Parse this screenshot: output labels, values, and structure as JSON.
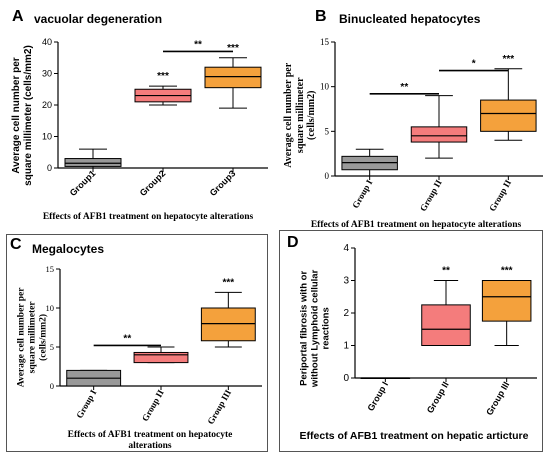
{
  "figure": {
    "panels": [
      {
        "letter": "A",
        "title": "vacuolar degeneration",
        "ylabel_lines": [
          "Average cell number per",
          "square millimeter (cells/mm2)"
        ],
        "xlabel": "Effects of AFB1 treatment on hepatocyte alterations",
        "ytick_labels": [
          "0",
          "10",
          "20",
          "30",
          "40"
        ],
        "category_labels": [
          "Group1",
          "Group2",
          "Group3"
        ],
        "significance": [
          {
            "text": "***"
          },
          {
            "text": "***"
          },
          {
            "text": "**"
          }
        ]
      },
      {
        "letter": "B",
        "title": "Binucleated hepatocytes",
        "ylabel_lines": [
          "Average cell number per",
          "square millimeter",
          "(cells/mm2)"
        ],
        "xlabel": "Effects of AFB1 treatment on hepatocyte alterations",
        "ytick_labels": [
          "0",
          "5",
          "10",
          "15"
        ],
        "category_labels": [
          "Group I",
          "Group II",
          "Group II"
        ],
        "significance": [
          {
            "text": "***"
          },
          {
            "text": "**"
          },
          {
            "text": "*"
          }
        ]
      },
      {
        "letter": "C",
        "title": "Megalocytes",
        "ylabel_lines": [
          "Average cell number per",
          "square millimeter",
          "(cells/mm2)"
        ],
        "xlabel_lines": [
          "Effects of AFB1 treatment on hepatocyte",
          "alterations"
        ],
        "ytick_labels": [
          "0",
          "5",
          "10",
          "15"
        ],
        "category_labels": [
          "Group I",
          "Group II",
          "Group III"
        ],
        "significance": [
          {
            "text": "***"
          },
          {
            "text": "**"
          }
        ]
      },
      {
        "letter": "D",
        "title": "",
        "ylabel_lines": [
          "Periportal fibrosis with or",
          "without Lymphoid cellular",
          "reactions"
        ],
        "xlabel": "Effects of AFB1 treatment on hepatic articture",
        "ytick_labels": [
          "0",
          "1",
          "2",
          "3",
          "4"
        ],
        "category_labels": [
          "Group I",
          "Group II",
          "Group III"
        ],
        "significance": [
          {
            "text": "**"
          },
          {
            "text": "***"
          }
        ]
      }
    ]
  },
  "chart_data": [
    {
      "type": "box",
      "title": "vacuolar degeneration",
      "ylabel": "Average cell number per square millimeter (cells/mm2)",
      "xlabel": "Effects of AFB1 treatment on hepatocyte alterations",
      "categories": [
        "Group1",
        "Group2",
        "Group3"
      ],
      "ylim": [
        0,
        40
      ],
      "yticks": [
        0,
        10,
        20,
        30,
        40
      ],
      "boxes": [
        {
          "min": 0,
          "q1": 0.5,
          "median": 1.5,
          "q3": 3,
          "max": 6
        },
        {
          "min": 20,
          "q1": 21,
          "median": 23,
          "q3": 25,
          "max": 26
        },
        {
          "min": 19,
          "q1": 25.5,
          "median": 29,
          "q3": 32,
          "max": 35
        }
      ],
      "colors": [
        "#999999",
        "#f47c7c",
        "#f4a13c"
      ],
      "annotations": [
        {
          "text": "***",
          "group": 2
        },
        {
          "text": "***",
          "group": 3
        },
        {
          "text": "**",
          "from": 2,
          "to": 3,
          "y": 37
        }
      ]
    },
    {
      "type": "box",
      "title": "Binucleated hepatocytes",
      "ylabel": "Average cell number per square millimeter (cells/mm2)",
      "xlabel": "Effects of AFB1 treatment on hepatocyte alterations",
      "categories": [
        "Group I",
        "Group II",
        "Group II"
      ],
      "ylim": [
        0,
        15
      ],
      "yticks": [
        0,
        5,
        10,
        15
      ],
      "boxes": [
        {
          "min": 0,
          "q1": 0.7,
          "median": 1.5,
          "q3": 2.2,
          "max": 3
        },
        {
          "min": 2,
          "q1": 3.8,
          "median": 4.5,
          "q3": 5.5,
          "max": 9
        },
        {
          "min": 4,
          "q1": 5,
          "median": 7,
          "q3": 8.5,
          "max": 12
        }
      ],
      "colors": [
        "#999999",
        "#f47c7c",
        "#f4a13c"
      ],
      "annotations": [
        {
          "text": "***",
          "group": 3
        },
        {
          "text": "**",
          "from": 1,
          "to": 2,
          "y": 9.2
        },
        {
          "text": "*",
          "from": 2,
          "to": 3,
          "y": 11.8
        }
      ]
    },
    {
      "type": "box",
      "title": "Megalocytes",
      "ylabel": "Average cell number per square millimeter (cells/mm2)",
      "xlabel": "Effects of AFB1 treatment on hepatocyte alterations",
      "categories": [
        "Group I",
        "Group II",
        "Group III"
      ],
      "ylim": [
        0,
        15
      ],
      "yticks": [
        0,
        5,
        10,
        15
      ],
      "boxes": [
        {
          "min": 0,
          "q1": 0,
          "median": 1,
          "q3": 2,
          "max": 2
        },
        {
          "min": 3,
          "q1": 3,
          "median": 4,
          "q3": 4.3,
          "max": 5
        },
        {
          "min": 5,
          "q1": 5.8,
          "median": 8,
          "q3": 10,
          "max": 12
        }
      ],
      "colors": [
        "#999999",
        "#f47c7c",
        "#f4a13c"
      ],
      "annotations": [
        {
          "text": "***",
          "group": 3
        },
        {
          "text": "**",
          "from": 1,
          "to": 2,
          "y": 5.2
        }
      ]
    },
    {
      "type": "box",
      "title": "",
      "ylabel": "Periportal fibrosis with or without Lymphoid cellular reactions",
      "xlabel": "Effects of AFB1 treatment on hepatic articture",
      "categories": [
        "Group I",
        "Group II",
        "Group III"
      ],
      "ylim": [
        0,
        4
      ],
      "yticks": [
        0,
        1,
        2,
        3,
        4
      ],
      "boxes": [
        {
          "min": 0,
          "q1": 0,
          "median": 0,
          "q3": 0,
          "max": 0
        },
        {
          "min": 1,
          "q1": 1,
          "median": 1.5,
          "q3": 2.25,
          "max": 3
        },
        {
          "min": 1,
          "q1": 1.75,
          "median": 2.5,
          "q3": 3,
          "max": 3
        }
      ],
      "colors": [
        "#999999",
        "#f47c7c",
        "#f4a13c"
      ],
      "annotations": [
        {
          "text": "**",
          "group": 2
        },
        {
          "text": "***",
          "group": 3
        }
      ]
    }
  ]
}
